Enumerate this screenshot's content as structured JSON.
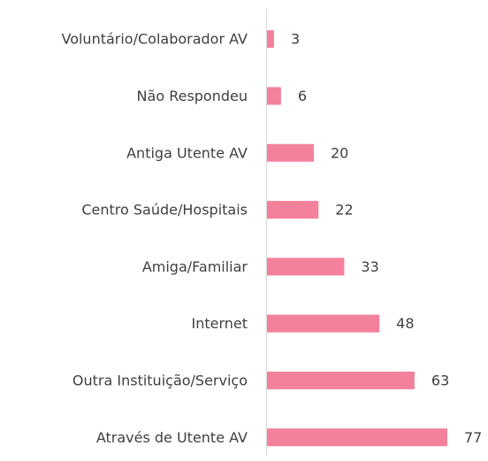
{
  "chart_data": {
    "type": "barh",
    "categories": [
      "Voluntário/Colaborador AV",
      "Não Respondeu",
      "Antiga Utente AV",
      "Centro Saúde/Hospitais",
      "Amiga/Familiar",
      "Internet",
      "Outra Instituição/Serviço",
      "Através de Utente AV"
    ],
    "values": [
      3,
      6,
      20,
      22,
      33,
      48,
      63,
      77
    ],
    "color": "#f4819b"
  }
}
